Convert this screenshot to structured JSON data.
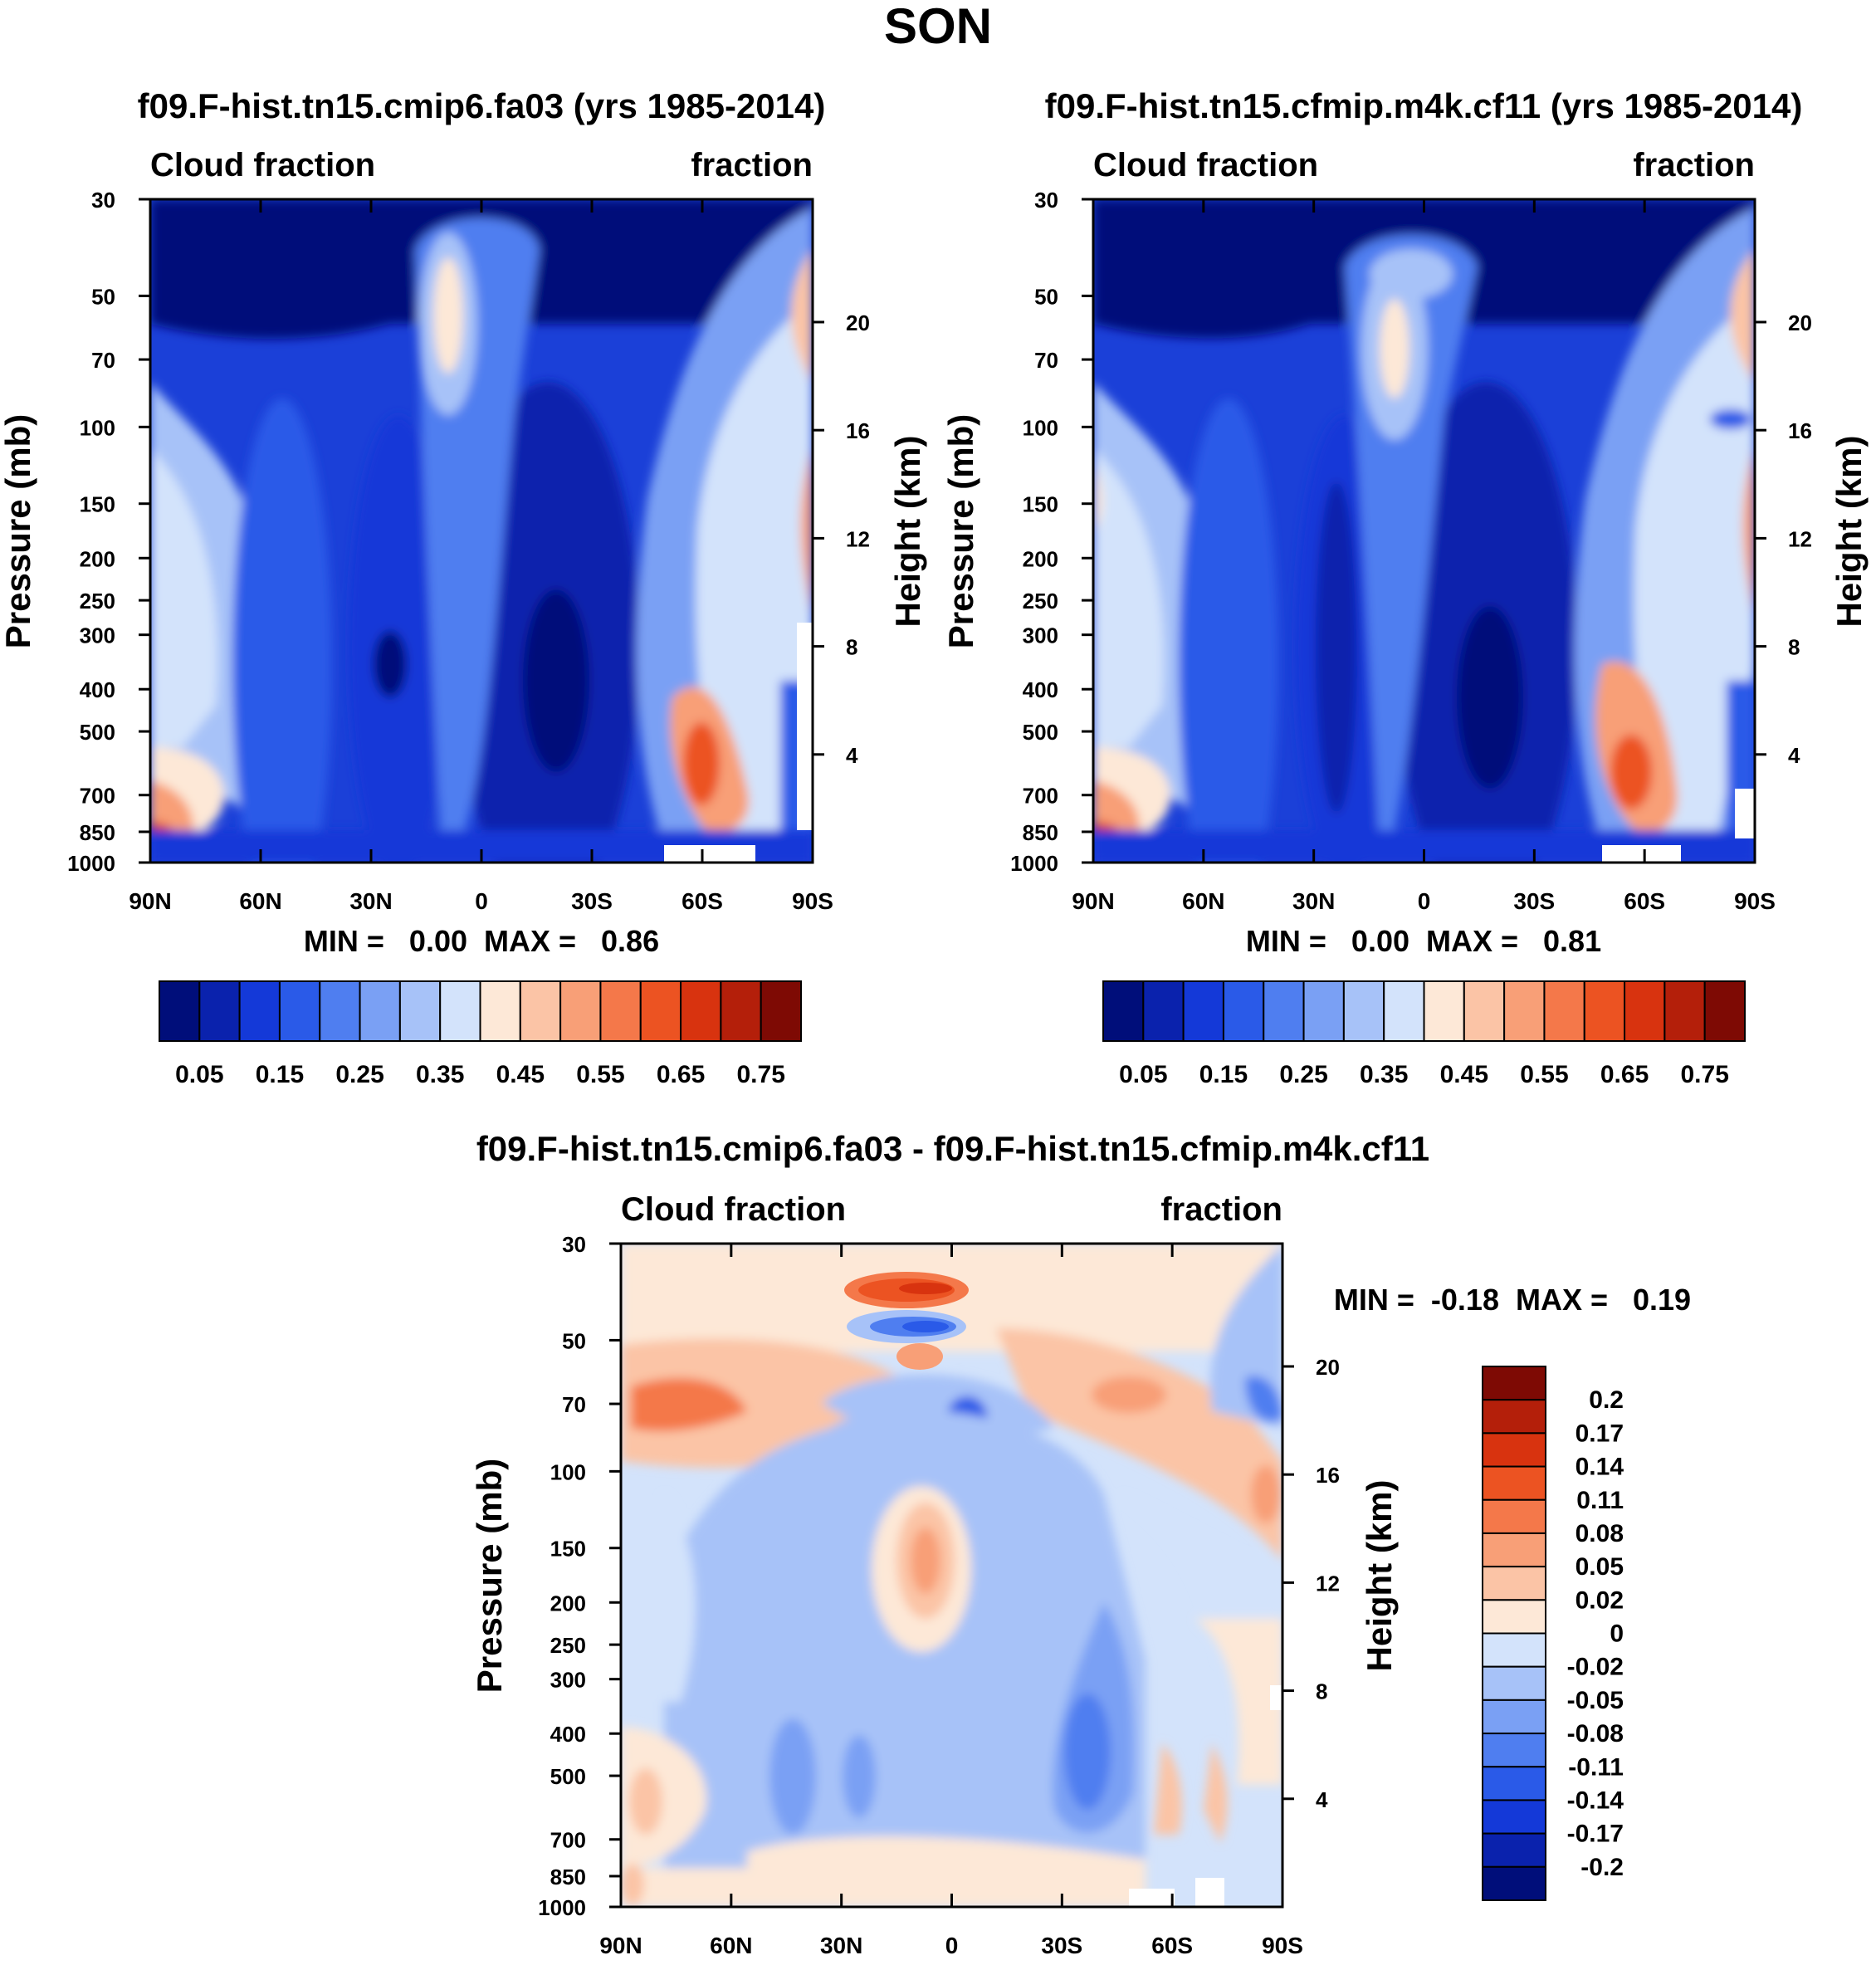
{
  "figure": {
    "season": "SON"
  },
  "chart_data": [
    {
      "type": "heatmap",
      "id": "left",
      "title": "f09.F-hist.tn15.cmip6.fa03 (yrs 1985-2014)",
      "left_label": "Cloud fraction",
      "right_label": "fraction",
      "xlabel": "",
      "ylabel": "Pressure (mb)",
      "ylabel_right": "Height (km)",
      "x_ticks": [
        "90N",
        "60N",
        "30N",
        "0",
        "30S",
        "60S",
        "90S"
      ],
      "y_ticks": [
        "30",
        "50",
        "70",
        "100",
        "150",
        "200",
        "250",
        "300",
        "400",
        "500",
        "700",
        "850",
        "1000"
      ],
      "y_ticks_right": [
        "20",
        "16",
        "12",
        "8",
        "4"
      ],
      "stats": "MIN =   0.00  MAX =   0.86",
      "min": 0.0,
      "max": 0.86,
      "colorbar_labels": [
        "0.05",
        "0.15",
        "0.25",
        "0.35",
        "0.45",
        "0.55",
        "0.65",
        "0.75"
      ],
      "colorbar_levels": [
        0.05,
        0.1,
        0.15,
        0.2,
        0.25,
        0.3,
        0.35,
        0.4,
        0.45,
        0.5,
        0.55,
        0.6,
        0.65,
        0.7,
        0.75
      ],
      "colors": [
        "#000e7a",
        "#0a22ad",
        "#1439d8",
        "#2a5ae8",
        "#4f7ef0",
        "#7aa0f4",
        "#a7c2f8",
        "#d3e3fb",
        "#fde8d7",
        "#fbc4a6",
        "#f89f77",
        "#f4784a",
        "#ec5322",
        "#d8330f",
        "#b41f0a",
        "#7e0a04"
      ]
    },
    {
      "type": "heatmap",
      "id": "right",
      "title": "f09.F-hist.tn15.cfmip.m4k.cf11 (yrs 1985-2014)",
      "left_label": "Cloud fraction",
      "right_label": "fraction",
      "xlabel": "",
      "ylabel": "Pressure (mb)",
      "ylabel_right": "Height (km)",
      "x_ticks": [
        "90N",
        "60N",
        "30N",
        "0",
        "30S",
        "60S",
        "90S"
      ],
      "y_ticks": [
        "30",
        "50",
        "70",
        "100",
        "150",
        "200",
        "250",
        "300",
        "400",
        "500",
        "700",
        "850",
        "1000"
      ],
      "y_ticks_right": [
        "20",
        "16",
        "12",
        "8",
        "4"
      ],
      "stats": "MIN =   0.00  MAX =   0.81",
      "min": 0.0,
      "max": 0.81,
      "colorbar_labels": [
        "0.05",
        "0.15",
        "0.25",
        "0.35",
        "0.45",
        "0.55",
        "0.65",
        "0.75"
      ],
      "colorbar_levels": [
        0.05,
        0.1,
        0.15,
        0.2,
        0.25,
        0.3,
        0.35,
        0.4,
        0.45,
        0.5,
        0.55,
        0.6,
        0.65,
        0.7,
        0.75
      ],
      "colors": [
        "#000e7a",
        "#0a22ad",
        "#1439d8",
        "#2a5ae8",
        "#4f7ef0",
        "#7aa0f4",
        "#a7c2f8",
        "#d3e3fb",
        "#fde8d7",
        "#fbc4a6",
        "#f89f77",
        "#f4784a",
        "#ec5322",
        "#d8330f",
        "#b41f0a",
        "#7e0a04"
      ]
    },
    {
      "type": "heatmap",
      "id": "diff",
      "title": "f09.F-hist.tn15.cmip6.fa03 - f09.F-hist.tn15.cfmip.m4k.cf11",
      "left_label": "Cloud fraction",
      "right_label": "fraction",
      "xlabel": "",
      "ylabel": "Pressure (mb)",
      "ylabel_right": "Height (km)",
      "x_ticks": [
        "90N",
        "60N",
        "30N",
        "0",
        "30S",
        "60S",
        "90S"
      ],
      "y_ticks": [
        "30",
        "50",
        "70",
        "100",
        "150",
        "200",
        "250",
        "300",
        "400",
        "500",
        "700",
        "850",
        "1000"
      ],
      "y_ticks_right": [
        "20",
        "16",
        "12",
        "8",
        "4"
      ],
      "stats": "MIN =  -0.18  MAX =   0.19",
      "min": -0.18,
      "max": 0.19,
      "colorbar_labels": [
        "0.2",
        "0.17",
        "0.14",
        "0.11",
        "0.08",
        "0.05",
        "0.02",
        "0",
        "-0.02",
        "-0.05",
        "-0.08",
        "-0.11",
        "-0.14",
        "-0.17",
        "-0.2"
      ],
      "colorbar_levels": [
        0.2,
        0.17,
        0.14,
        0.11,
        0.08,
        0.05,
        0.02,
        0,
        -0.02,
        -0.05,
        -0.08,
        -0.11,
        -0.14,
        -0.17,
        -0.2
      ],
      "colors": [
        "#7e0a04",
        "#b41f0a",
        "#d8330f",
        "#ec5322",
        "#f4784a",
        "#f89f77",
        "#fbc4a6",
        "#fde8d7",
        "#d3e3fb",
        "#a7c2f8",
        "#7aa0f4",
        "#4f7ef0",
        "#2a5ae8",
        "#1439d8",
        "#0a22ad",
        "#000e7a"
      ]
    }
  ]
}
